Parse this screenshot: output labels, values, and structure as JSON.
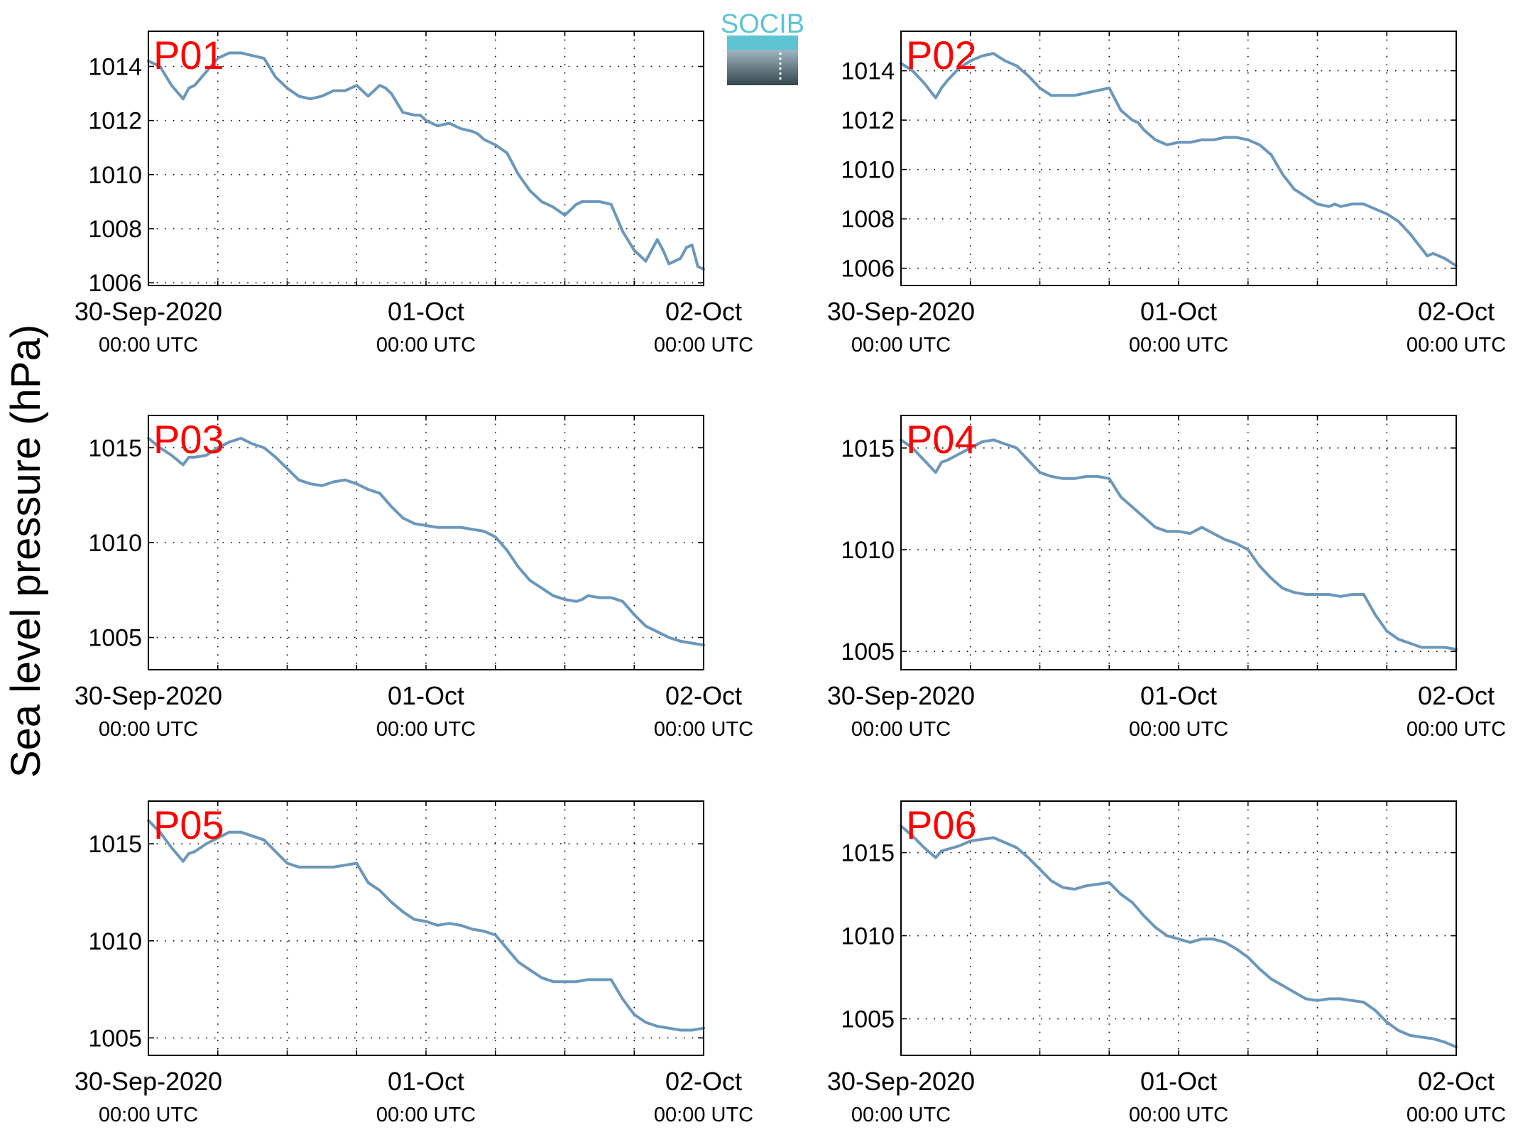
{
  "figure": {
    "ylabel": "Sea level pressure (hPa)",
    "logo_text": "SOCIB",
    "colors": {
      "line": "#6b97bb",
      "panel_label": "#ff0000",
      "axes": "#000000",
      "grid": "#000000",
      "logo_top": "#5ec3d3",
      "logo_bottom": "#36464f"
    }
  },
  "chart_data": [
    {
      "type": "line",
      "title": "P01",
      "x_ticks": [
        {
          "line1": "30-Sep-2020",
          "line2": "00:00 UTC"
        },
        {
          "line1": "01-Oct",
          "line2": "00:00 UTC"
        },
        {
          "line1": "02-Oct",
          "line2": "00:00 UTC"
        }
      ],
      "xlim_hours": [
        0,
        48
      ],
      "ylim": [
        1005.9,
        1015.3
      ],
      "yticks": [
        1006,
        1008,
        1010,
        1012,
        1014
      ],
      "grid": true,
      "series": [
        {
          "x_hours": [
            0,
            1,
            2,
            3,
            3.5,
            4,
            5,
            6,
            7,
            8,
            9,
            10,
            11,
            12,
            13,
            14,
            15,
            16,
            17,
            18,
            19,
            20,
            20.5,
            21,
            22,
            23,
            23.5,
            24,
            25,
            26,
            27,
            28,
            28.5,
            29,
            30,
            31,
            32,
            33,
            34,
            35,
            36,
            37,
            37.5,
            38,
            39,
            40,
            41,
            42,
            43,
            44,
            44.5,
            45,
            46,
            46.5,
            47,
            47.5,
            48
          ],
          "y": [
            1014.2,
            1014.0,
            1013.3,
            1012.8,
            1013.2,
            1013.3,
            1013.8,
            1014.3,
            1014.5,
            1014.5,
            1014.4,
            1014.3,
            1013.6,
            1013.2,
            1012.9,
            1012.8,
            1012.9,
            1013.1,
            1013.1,
            1013.3,
            1012.9,
            1013.3,
            1013.2,
            1013.0,
            1012.3,
            1012.2,
            1012.2,
            1012.0,
            1011.8,
            1011.9,
            1011.7,
            1011.6,
            1011.5,
            1011.3,
            1011.1,
            1010.8,
            1010.0,
            1009.4,
            1009.0,
            1008.8,
            1008.5,
            1008.9,
            1009.0,
            1009.0,
            1009.0,
            1008.9,
            1007.9,
            1007.2,
            1006.8,
            1007.6,
            1007.2,
            1006.7,
            1006.9,
            1007.3,
            1007.4,
            1006.6,
            1006.5
          ]
        }
      ]
    },
    {
      "type": "line",
      "title": "P02",
      "x_ticks": [
        {
          "line1": "30-Sep-2020",
          "line2": "00:00 UTC"
        },
        {
          "line1": "01-Oct",
          "line2": "00:00 UTC"
        },
        {
          "line1": "02-Oct",
          "line2": "00:00 UTC"
        }
      ],
      "xlim_hours": [
        0,
        48
      ],
      "ylim": [
        1005.3,
        1015.6
      ],
      "yticks": [
        1006,
        1008,
        1010,
        1012,
        1014
      ],
      "grid": true,
      "series": [
        {
          "x_hours": [
            0,
            1,
            2,
            3,
            3.5,
            4,
            5,
            6,
            7,
            8,
            9,
            10,
            11,
            12,
            13,
            14,
            15,
            16,
            17,
            18,
            19,
            20,
            20.5,
            21,
            22,
            23,
            24,
            25,
            26,
            27,
            28,
            29,
            30,
            31,
            32,
            33,
            34,
            35,
            36,
            37,
            37.5,
            38,
            39,
            40,
            41,
            42,
            43,
            44,
            45,
            45.5,
            46,
            47,
            48
          ],
          "y": [
            1014.3,
            1014.0,
            1013.5,
            1012.9,
            1013.3,
            1013.6,
            1014.1,
            1014.4,
            1014.6,
            1014.7,
            1014.4,
            1014.2,
            1013.8,
            1013.3,
            1013.0,
            1013.0,
            1013.0,
            1013.1,
            1013.2,
            1013.3,
            1012.4,
            1012.0,
            1011.9,
            1011.6,
            1011.2,
            1011.0,
            1011.1,
            1011.1,
            1011.2,
            1011.2,
            1011.3,
            1011.3,
            1011.2,
            1011.0,
            1010.6,
            1009.8,
            1009.2,
            1008.9,
            1008.6,
            1008.5,
            1008.6,
            1008.5,
            1008.6,
            1008.6,
            1008.4,
            1008.2,
            1007.9,
            1007.4,
            1006.8,
            1006.5,
            1006.6,
            1006.4,
            1006.1
          ]
        }
      ]
    },
    {
      "type": "line",
      "title": "P03",
      "x_ticks": [
        {
          "line1": "30-Sep-2020",
          "line2": "00:00 UTC"
        },
        {
          "line1": "01-Oct",
          "line2": "00:00 UTC"
        },
        {
          "line1": "02-Oct",
          "line2": "00:00 UTC"
        }
      ],
      "xlim_hours": [
        0,
        48
      ],
      "ylim": [
        1003.3,
        1016.7
      ],
      "yticks": [
        1005,
        1010,
        1015
      ],
      "grid": true,
      "series": [
        {
          "x_hours": [
            0,
            1,
            2,
            3,
            3.5,
            4,
            5,
            6,
            7,
            8,
            9,
            10,
            11,
            12,
            13,
            14,
            15,
            16,
            17,
            18,
            19,
            20,
            21,
            22,
            23,
            24,
            25,
            26,
            27,
            28,
            29,
            30,
            31,
            32,
            33,
            34,
            35,
            36,
            37,
            37.5,
            38,
            39,
            40,
            41,
            42,
            43,
            44,
            45,
            46,
            47,
            48
          ],
          "y": [
            1015.5,
            1015.0,
            1014.6,
            1014.1,
            1014.5,
            1014.5,
            1014.6,
            1015.0,
            1015.3,
            1015.5,
            1015.2,
            1015.0,
            1014.5,
            1013.9,
            1013.3,
            1013.1,
            1013.0,
            1013.2,
            1013.3,
            1013.1,
            1012.8,
            1012.6,
            1011.9,
            1011.3,
            1011.0,
            1010.9,
            1010.8,
            1010.8,
            1010.8,
            1010.7,
            1010.6,
            1010.3,
            1009.6,
            1008.7,
            1008.0,
            1007.6,
            1007.2,
            1007.0,
            1006.9,
            1007.0,
            1007.2,
            1007.1,
            1007.1,
            1006.9,
            1006.2,
            1005.6,
            1005.3,
            1005.0,
            1004.8,
            1004.7,
            1004.6
          ]
        }
      ]
    },
    {
      "type": "line",
      "title": "P04",
      "x_ticks": [
        {
          "line1": "30-Sep-2020",
          "line2": "00:00 UTC"
        },
        {
          "line1": "01-Oct",
          "line2": "00:00 UTC"
        },
        {
          "line1": "02-Oct",
          "line2": "00:00 UTC"
        }
      ],
      "xlim_hours": [
        0,
        48
      ],
      "ylim": [
        1004.1,
        1016.6
      ],
      "yticks": [
        1005,
        1010,
        1015
      ],
      "grid": true,
      "series": [
        {
          "x_hours": [
            0,
            1,
            2,
            3,
            3.5,
            4,
            5,
            6,
            7,
            8,
            9,
            10,
            11,
            12,
            13,
            14,
            15,
            16,
            17,
            18,
            19,
            20,
            21,
            22,
            23,
            24,
            25,
            26,
            27,
            28,
            29,
            30,
            31,
            32,
            33,
            34,
            35,
            36,
            37,
            38,
            39,
            40,
            41,
            42,
            43,
            44,
            45,
            46,
            47,
            48
          ],
          "y": [
            1015.4,
            1015.0,
            1014.4,
            1013.8,
            1014.3,
            1014.4,
            1014.7,
            1015.0,
            1015.3,
            1015.4,
            1015.2,
            1015.0,
            1014.4,
            1013.8,
            1013.6,
            1013.5,
            1013.5,
            1013.6,
            1013.6,
            1013.5,
            1012.6,
            1012.1,
            1011.6,
            1011.1,
            1010.9,
            1010.9,
            1010.8,
            1011.1,
            1010.8,
            1010.5,
            1010.3,
            1010.0,
            1009.2,
            1008.6,
            1008.1,
            1007.9,
            1007.8,
            1007.8,
            1007.8,
            1007.7,
            1007.8,
            1007.8,
            1006.8,
            1006.0,
            1005.6,
            1005.4,
            1005.2,
            1005.2,
            1005.2,
            1005.1
          ]
        }
      ]
    },
    {
      "type": "line",
      "title": "P05",
      "x_ticks": [
        {
          "line1": "30-Sep-2020",
          "line2": "00:00 UTC"
        },
        {
          "line1": "01-Oct",
          "line2": "00:00 UTC"
        },
        {
          "line1": "02-Oct",
          "line2": "00:00 UTC"
        }
      ],
      "xlim_hours": [
        0,
        48
      ],
      "ylim": [
        1004.1,
        1017.2
      ],
      "yticks": [
        1005,
        1010,
        1015
      ],
      "grid": true,
      "series": [
        {
          "x_hours": [
            0,
            1,
            2,
            3,
            3.5,
            4,
            5,
            6,
            7,
            8,
            9,
            10,
            11,
            12,
            13,
            14,
            15,
            16,
            17,
            18,
            19,
            20,
            21,
            22,
            23,
            24,
            25,
            26,
            27,
            28,
            29,
            30,
            31,
            32,
            33,
            34,
            35,
            36,
            37,
            38,
            39,
            40,
            41,
            42,
            43,
            44,
            45,
            46,
            47,
            48
          ],
          "y": [
            1016.2,
            1015.6,
            1014.8,
            1014.1,
            1014.5,
            1014.6,
            1015.0,
            1015.3,
            1015.6,
            1015.6,
            1015.4,
            1015.2,
            1014.6,
            1014.0,
            1013.8,
            1013.8,
            1013.8,
            1013.8,
            1013.9,
            1014.0,
            1013.0,
            1012.6,
            1012.0,
            1011.5,
            1011.1,
            1011.0,
            1010.8,
            1010.9,
            1010.8,
            1010.6,
            1010.5,
            1010.3,
            1009.6,
            1008.9,
            1008.5,
            1008.1,
            1007.9,
            1007.9,
            1007.9,
            1008.0,
            1008.0,
            1008.0,
            1007.0,
            1006.2,
            1005.8,
            1005.6,
            1005.5,
            1005.4,
            1005.4,
            1005.5
          ]
        }
      ]
    },
    {
      "type": "line",
      "title": "P06",
      "x_ticks": [
        {
          "line1": "30-Sep-2020",
          "line2": "00:00 UTC"
        },
        {
          "line1": "01-Oct",
          "line2": "00:00 UTC"
        },
        {
          "line1": "02-Oct",
          "line2": "00:00 UTC"
        }
      ],
      "xlim_hours": [
        0,
        48
      ],
      "ylim": [
        1002.8,
        1018.1
      ],
      "yticks": [
        1005,
        1010,
        1015
      ],
      "grid": true,
      "series": [
        {
          "x_hours": [
            0,
            1,
            2,
            3,
            3.5,
            4,
            5,
            6,
            7,
            8,
            9,
            10,
            11,
            12,
            13,
            14,
            15,
            16,
            17,
            18,
            19,
            20,
            21,
            22,
            23,
            24,
            25,
            26,
            27,
            28,
            29,
            30,
            31,
            32,
            33,
            34,
            35,
            36,
            37,
            38,
            39,
            40,
            41,
            42,
            43,
            44,
            45,
            46,
            47,
            48
          ],
          "y": [
            1016.6,
            1016.0,
            1015.3,
            1014.7,
            1015.1,
            1015.2,
            1015.4,
            1015.7,
            1015.8,
            1015.9,
            1015.6,
            1015.3,
            1014.7,
            1014.0,
            1013.3,
            1012.9,
            1012.8,
            1013.0,
            1013.1,
            1013.2,
            1012.5,
            1012.0,
            1011.2,
            1010.5,
            1010.0,
            1009.8,
            1009.6,
            1009.8,
            1009.8,
            1009.6,
            1009.2,
            1008.7,
            1008.0,
            1007.4,
            1007.0,
            1006.6,
            1006.2,
            1006.1,
            1006.2,
            1006.2,
            1006.1,
            1006.0,
            1005.5,
            1004.8,
            1004.3,
            1004.0,
            1003.9,
            1003.8,
            1003.6,
            1003.3
          ]
        }
      ]
    }
  ]
}
